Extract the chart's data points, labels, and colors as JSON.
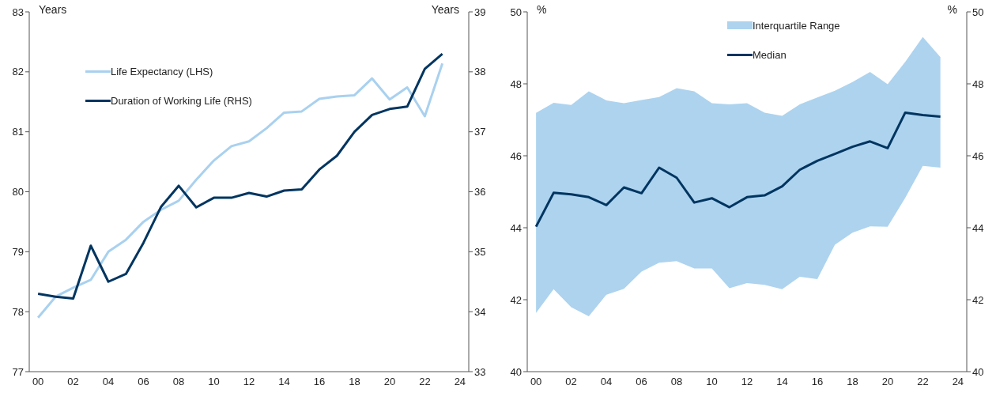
{
  "chart_data": [
    {
      "type": "line",
      "ylabel": "Years",
      "y2label": "Years",
      "legend": "top left",
      "categories": [
        "00",
        null,
        "02",
        null,
        "04",
        null,
        "06",
        null,
        "08",
        null,
        "10",
        null,
        "12",
        null,
        "14",
        null,
        "16",
        null,
        "18",
        null,
        "20",
        null,
        "22",
        null,
        "24"
      ],
      "ylim": [
        77,
        83
      ],
      "yticks": [
        77,
        78,
        79,
        80,
        81,
        82,
        83
      ],
      "y2lim": [
        33,
        39
      ],
      "y2ticks": [
        33,
        34,
        35,
        36,
        37,
        38,
        39
      ],
      "series": [
        {
          "name": "Life Expectancy (LHS)",
          "color": "#a9d1ef",
          "values": [
            77.9,
            78.25,
            78.4,
            78.53,
            79.0,
            79.2,
            79.5,
            79.7,
            79.85,
            80.2,
            80.52,
            80.76,
            80.84,
            81.06,
            81.32,
            81.34,
            81.55,
            81.59,
            81.61,
            81.89,
            81.54,
            81.74,
            81.26,
            82.14,
            null
          ]
        },
        {
          "name": "Duration of Working Life (RHS)",
          "color": "#003560",
          "axis": "y2",
          "values": [
            34.3,
            34.25,
            34.22,
            35.1,
            34.5,
            34.63,
            35.15,
            35.75,
            36.1,
            35.74,
            35.9,
            35.9,
            35.98,
            35.92,
            36.02,
            36.04,
            36.37,
            36.6,
            37.0,
            37.28,
            37.38,
            37.42,
            38.05,
            38.3,
            null
          ]
        }
      ]
    },
    {
      "type": "line",
      "ylabel": "%",
      "y2label": "%",
      "legend": "top",
      "annotations": [
        "Interquartile Range"
      ],
      "categories": [
        "00",
        null,
        "02",
        null,
        "04",
        null,
        "06",
        null,
        "08",
        null,
        "10",
        null,
        "12",
        null,
        "14",
        null,
        "16",
        null,
        "18",
        null,
        "20",
        null,
        "22",
        null,
        "24"
      ],
      "ylim": [
        40,
        50
      ],
      "yticks": [
        40,
        42,
        44,
        46,
        48,
        50
      ],
      "y2lim": [
        40,
        50
      ],
      "y2ticks": [
        40,
        42,
        44,
        46,
        48,
        50
      ],
      "series": [
        {
          "name": "Median",
          "color": "#003560",
          "values": [
            44.03,
            44.97,
            44.93,
            44.85,
            44.63,
            45.12,
            44.96,
            45.67,
            45.39,
            44.7,
            44.82,
            44.57,
            44.85,
            44.9,
            45.15,
            45.61,
            45.86,
            46.05,
            46.25,
            46.4,
            46.21,
            47.2,
            47.13,
            47.09,
            null
          ],
          "lower": [
            41.63,
            42.29,
            41.79,
            41.54,
            42.14,
            42.3,
            42.78,
            43.03,
            43.07,
            42.87,
            42.87,
            42.32,
            42.46,
            42.41,
            42.29,
            42.64,
            42.57,
            43.53,
            43.86,
            44.04,
            44.03,
            44.83,
            45.72,
            45.67,
            null
          ],
          "upper": [
            47.19,
            47.47,
            47.41,
            47.79,
            47.54,
            47.46,
            47.55,
            47.63,
            47.88,
            47.79,
            47.46,
            47.43,
            47.46,
            47.2,
            47.11,
            47.43,
            47.62,
            47.81,
            48.05,
            48.33,
            47.99,
            48.61,
            49.3,
            48.74,
            null
          ]
        }
      ]
    }
  ]
}
